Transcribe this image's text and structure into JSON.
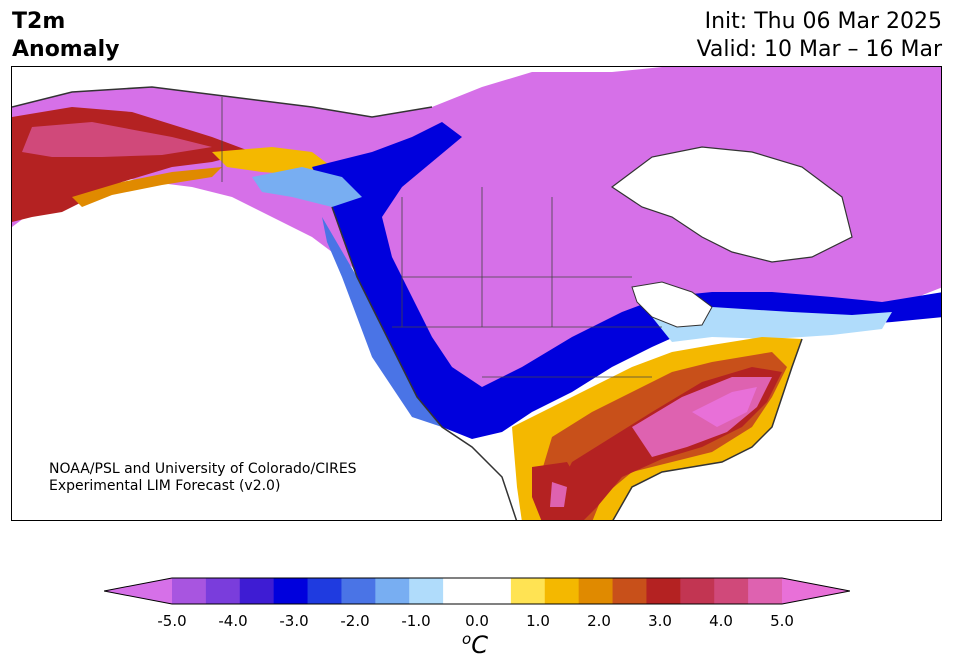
{
  "title": {
    "line1": "T2m",
    "line2": "Anomaly",
    "init": "Init: Thu 06 Mar 2025",
    "valid": "Valid: 10 Mar – 16 Mar"
  },
  "credit": {
    "line1": "NOAA/PSL and University of Colorado/CIRES",
    "line2": "Experimental LIM Forecast (v2.0)"
  },
  "colorbar": {
    "ticks": [
      "-5.0",
      "-4.0",
      "-3.0",
      "-2.0",
      "-1.0",
      "0.0",
      "1.0",
      "2.0",
      "3.0",
      "4.0",
      "5.0"
    ],
    "unit_prefix": "o",
    "unit": "C",
    "colors": [
      "#d670e8",
      "#a855e0",
      "#7a3ddc",
      "#3e1cd3",
      "#0000dd",
      "#1f3be0",
      "#4a74e6",
      "#78aef2",
      "#b0dcfb",
      "#ffffff",
      "#ffffff",
      "#ffe353",
      "#f4b800",
      "#e08a00",
      "#c8501a",
      "#b42222",
      "#c23552",
      "#d0497a",
      "#de62b0",
      "#e870d8"
    ]
  },
  "map": {
    "region": "North America",
    "variable": "2m temperature anomaly"
  }
}
